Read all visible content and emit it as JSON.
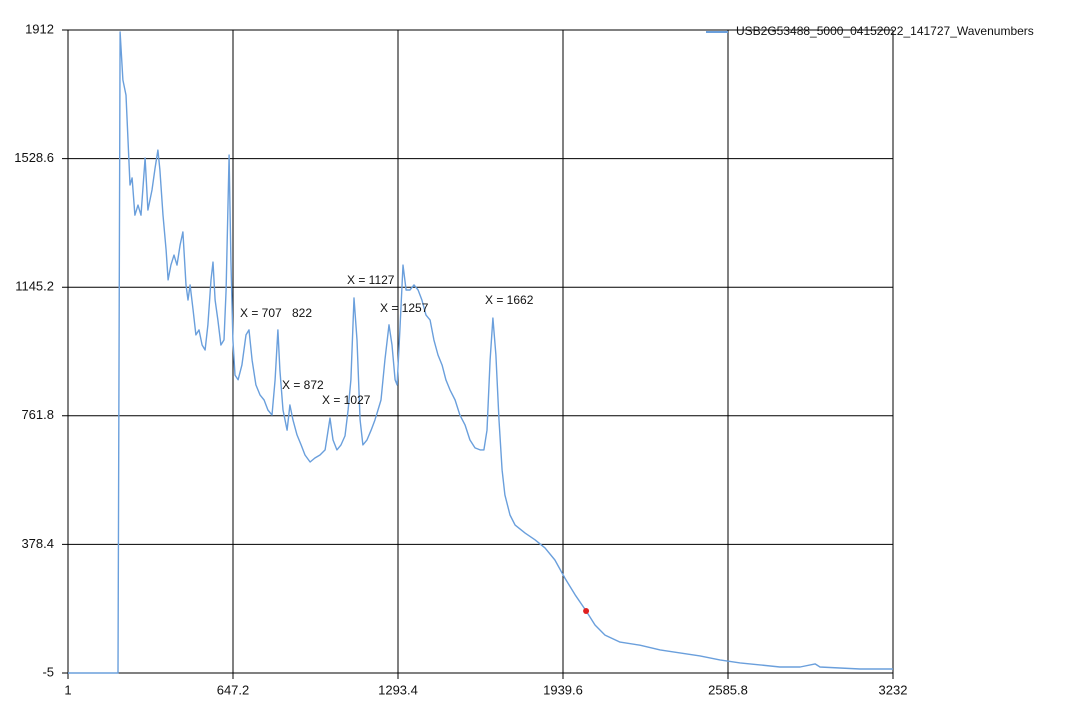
{
  "chart_data": {
    "type": "line",
    "series": [
      {
        "name": "USB2G53488_5000_04152022_141727_Wavenumbers",
        "color": "#6a9fdc",
        "x": [
          1,
          197,
          205,
          216,
          228,
          236,
          244,
          252,
          263,
          275,
          287,
          303,
          314,
          330,
          342,
          353,
          361,
          373,
          385,
          393,
          404,
          416,
          428,
          440,
          451,
          463,
          471,
          479,
          491,
          502,
          514,
          526,
          538,
          549,
          561,
          569,
          577,
          588,
          600,
          612,
          620,
          632,
          639,
          647,
          655,
          667,
          682,
          698,
          710,
          722,
          737,
          753,
          769,
          784,
          800,
          812,
          823,
          831,
          843,
          859,
          870,
          882,
          898,
          914,
          929,
          949,
          968,
          988,
          1008,
          1027,
          1039,
          1054,
          1070,
          1086,
          1098,
          1109,
          1121,
          1133,
          1145,
          1156,
          1172,
          1188,
          1203,
          1215,
          1227,
          1242,
          1258,
          1270,
          1282,
          1290,
          1301,
          1313,
          1325,
          1340,
          1356,
          1372,
          1387,
          1403,
          1419,
          1434,
          1450,
          1466,
          1481,
          1497,
          1517,
          1536,
          1556,
          1575,
          1595,
          1615,
          1630,
          1642,
          1654,
          1665,
          1677,
          1689,
          1701,
          1712,
          1732,
          1752,
          1791,
          1830,
          1869,
          1908,
          1947,
          1987,
          2030,
          2065,
          2104,
          2163,
          2241,
          2320,
          2398,
          2476,
          2554,
          2633,
          2711,
          2789,
          2868,
          2927,
          2946,
          3024,
          3103,
          3232
        ],
        "values": [
          -5,
          -5,
          1906,
          1763,
          1718,
          1584,
          1450,
          1471,
          1360,
          1390,
          1360,
          1530,
          1375,
          1435,
          1501,
          1554,
          1495,
          1360,
          1256,
          1167,
          1211,
          1241,
          1211,
          1271,
          1310,
          1152,
          1107,
          1152,
          1077,
          1003,
          1018,
          973,
          958,
          1033,
          1167,
          1220,
          1107,
          1047,
          973,
          988,
          1137,
          1539,
          1226,
          988,
          883,
          869,
          913,
          1003,
          1018,
          928,
          854,
          824,
          809,
          779,
          764,
          869,
          1018,
          898,
          779,
          719,
          794,
          749,
          705,
          675,
          645,
          624,
          636,
          645,
          660,
          755,
          690,
          660,
          675,
          702,
          779,
          869,
          1113,
          988,
          749,
          675,
          690,
          719,
          749,
          779,
          809,
          928,
          1033,
          973,
          869,
          854,
          1018,
          1211,
          1137,
          1137,
          1152,
          1137,
          1107,
          1062,
          1047,
          988,
          943,
          913,
          869,
          839,
          809,
          764,
          734,
          690,
          666,
          660,
          660,
          719,
          928,
          1053,
          943,
          749,
          600,
          526,
          466,
          436,
          412,
          392,
          368,
          332,
          278,
          228,
          180,
          138,
          108,
          87,
          78,
          64,
          55,
          46,
          34,
          25,
          19,
          13,
          13,
          22,
          13,
          10,
          7,
          7
        ]
      }
    ],
    "marker": {
      "x": 2030,
      "y": 180,
      "color": "#e02020"
    },
    "annotations": [
      "X = 707",
      "822",
      "X = 872",
      "X = 1027",
      "X = 1127",
      "X = 1257",
      "X = 1662"
    ],
    "xlim": [
      1,
      3232
    ],
    "xticks": [
      1,
      647.2,
      1293.4,
      1939.6,
      2585.8,
      3232
    ],
    "ylim": [
      -5,
      1912
    ],
    "yticks": [
      -5,
      378.4,
      761.8,
      1145.2,
      1528.6,
      1912
    ],
    "grid": true,
    "legend": "top-right"
  }
}
